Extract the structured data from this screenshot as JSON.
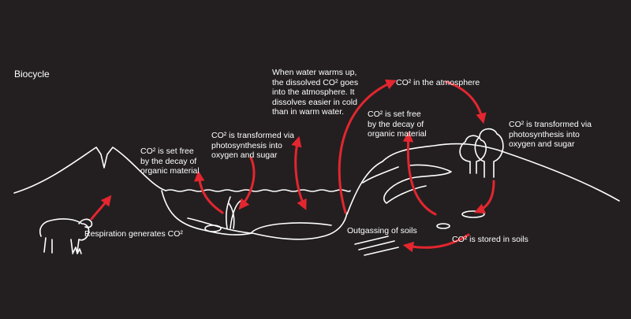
{
  "title": "Biocycle",
  "colors": {
    "background": "#231f20",
    "line": "#ffffff",
    "arrow": "#e3262f"
  },
  "labels": {
    "respiration": "Respiration generates CO²",
    "decay_left": "CO² is set free\nby the decay of\norganic material",
    "photosynthesis_lake": "CO² is transformed via\nphotosynthesis into\noxygen and sugar",
    "water_warming": "When water warms up,\nthe dissolved CO² goes\ninto the atmosphere. It\ndissolves easier in cold\nthan in warm water.",
    "atmosphere": "CO² in the atmosphere",
    "decay_right": "CO² is set free\nby the decay of\norganic material",
    "photosynthesis_trees": "CO² is transformed via\nphotosynthesis into\noxygen and sugar",
    "outgassing": "Outgassing of soils",
    "stored": "CO² is stored in soils"
  }
}
